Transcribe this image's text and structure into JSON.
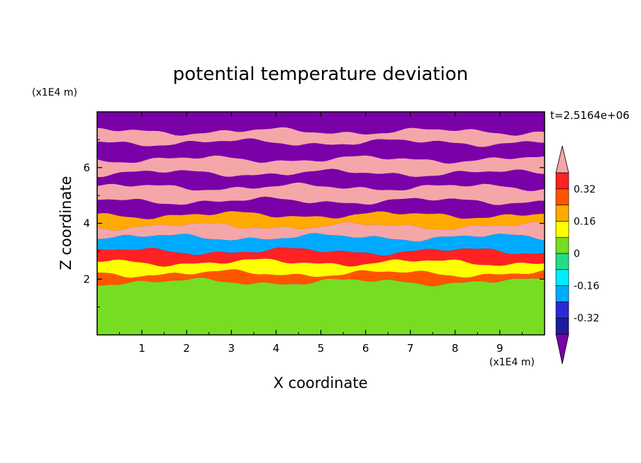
{
  "chart_data": {
    "type": "heatmap",
    "title": "potential temperature deviation",
    "xlabel": "X coordinate",
    "ylabel": "Z coordinate",
    "x_unit_label": "(x1E4 m)",
    "y_unit_label": "(x1E4 m)",
    "time_label": "t=2.5164e+06",
    "xlim": [
      0,
      10
    ],
    "ylim": [
      0,
      8
    ],
    "x_ticks": [
      "1",
      "2",
      "3",
      "4",
      "5",
      "6",
      "7",
      "8",
      "9"
    ],
    "y_ticks": [
      "2",
      "4",
      "6"
    ],
    "colorbar": {
      "tick_labels": [
        "0.32",
        "0.16",
        "0",
        "-0.16",
        "-0.32"
      ],
      "tick_values": [
        0.32,
        0.16,
        0,
        -0.16,
        -0.32
      ],
      "levels": [
        -0.4,
        -0.32,
        -0.24,
        -0.16,
        -0.08,
        0,
        0.08,
        0.16,
        0.24,
        0.32,
        0.4
      ],
      "colors": [
        "#1c1c9c",
        "#2a2ad6",
        "#00aaff",
        "#00eeff",
        "#22dd88",
        "#77dd22",
        "#ffff00",
        "#ffaa00",
        "#ff5500",
        "#ff2222"
      ],
      "under_color": "#7a00a8",
      "over_color": "#f4a6a8",
      "extend": "both"
    },
    "bands": [
      {
        "z": [
          7.3,
          8.0
        ],
        "value": -0.5
      },
      {
        "z": [
          6.9,
          7.3
        ],
        "value": 0.5
      },
      {
        "z": [
          6.3,
          6.9
        ],
        "value": -0.5
      },
      {
        "z": [
          5.8,
          6.3
        ],
        "value": 0.5
      },
      {
        "z": [
          5.3,
          5.8
        ],
        "value": -0.5
      },
      {
        "z": [
          4.8,
          5.3
        ],
        "value": 0.5
      },
      {
        "z": [
          4.3,
          4.8
        ],
        "value": -0.45
      },
      {
        "z": [
          3.9,
          4.3
        ],
        "value": 0.2
      },
      {
        "z": [
          3.5,
          3.9
        ],
        "value": 0.45
      },
      {
        "z": [
          3.0,
          3.5
        ],
        "value": -0.2
      },
      {
        "z": [
          2.6,
          3.0
        ],
        "value": 0.35
      },
      {
        "z": [
          2.2,
          2.6
        ],
        "value": 0.1
      },
      {
        "z": [
          1.9,
          2.2
        ],
        "value": 0.3
      },
      {
        "z": [
          0.0,
          1.9
        ],
        "value": 0.03
      }
    ]
  }
}
